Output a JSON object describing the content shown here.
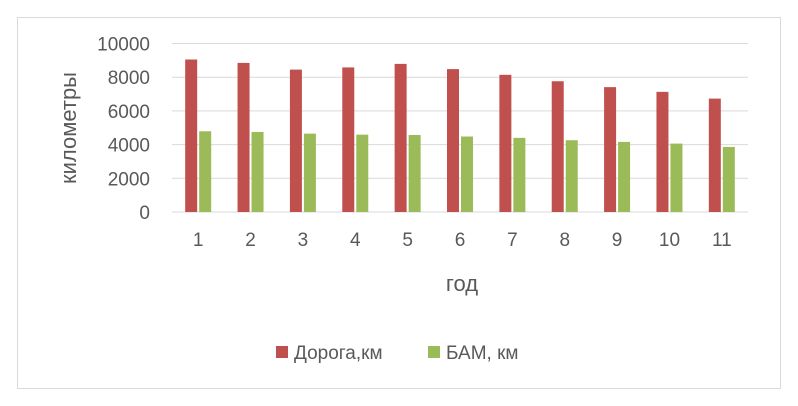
{
  "chart_data": {
    "type": "bar",
    "title": "",
    "xlabel": "год",
    "ylabel": "километры",
    "ylim": [
      0,
      10000
    ],
    "yticks": [
      0,
      2000,
      4000,
      6000,
      8000,
      10000
    ],
    "grid": true,
    "legend_position": "bottom",
    "categories": [
      "1",
      "2",
      "3",
      "4",
      "5",
      "6",
      "7",
      "8",
      "9",
      "10",
      "11"
    ],
    "series": [
      {
        "name": "Дорога,км",
        "color": "#c0504d",
        "values": [
          9050,
          8850,
          8450,
          8580,
          8790,
          8480,
          8140,
          7760,
          7410,
          7130,
          6730
        ]
      },
      {
        "name": "БАМ, км",
        "color": "#9bbb59",
        "values": [
          4790,
          4750,
          4650,
          4590,
          4570,
          4480,
          4400,
          4260,
          4160,
          4060,
          3860
        ]
      }
    ]
  }
}
